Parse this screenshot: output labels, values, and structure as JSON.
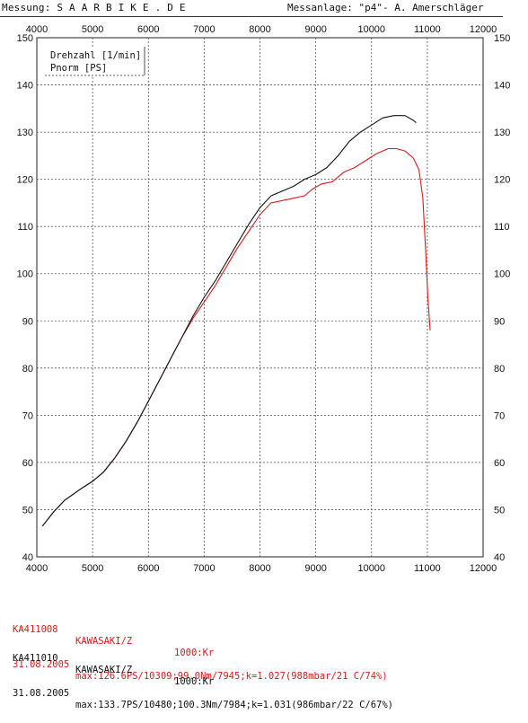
{
  "header": {
    "left": "Messung: S A A R B I K E . D E",
    "right": "Messanlage: \"p4\"- A. Amerschläger"
  },
  "chart_data": {
    "type": "line",
    "title": "",
    "legend_box": [
      "Drehzahl [1/min]",
      "Pnorm [PS]"
    ],
    "x_axis": {
      "label": "Drehzahl [1/min]",
      "range": [
        4000,
        12000
      ],
      "ticks": [
        4000,
        5000,
        6000,
        7000,
        8000,
        9000,
        10000,
        11000,
        12000
      ],
      "tick_labels": [
        "4000",
        "5000",
        "6000",
        "7000",
        "8000",
        "9000",
        "10000",
        "11000",
        "12000"
      ]
    },
    "y_axis": {
      "label": "Pnorm [PS]",
      "range": [
        40,
        150
      ],
      "ticks": [
        40,
        50,
        60,
        70,
        80,
        90,
        100,
        110,
        120,
        130,
        140,
        150
      ],
      "tick_labels": [
        "40",
        "50",
        "60",
        "70",
        "80",
        "90",
        "100",
        "110",
        "120",
        "130",
        "140",
        "150"
      ]
    },
    "grid": true,
    "series": [
      {
        "id": "KA411008",
        "color": "#d81b1b",
        "points": [
          [
            4100,
            46.5
          ],
          [
            4300,
            49.5
          ],
          [
            4500,
            52
          ],
          [
            4800,
            54.5
          ],
          [
            5000,
            56
          ],
          [
            5200,
            58
          ],
          [
            5400,
            61
          ],
          [
            5600,
            64.5
          ],
          [
            5800,
            68.5
          ],
          [
            6000,
            73
          ],
          [
            6200,
            77.5
          ],
          [
            6400,
            82
          ],
          [
            6600,
            86.5
          ],
          [
            6800,
            90.5
          ],
          [
            7000,
            94
          ],
          [
            7200,
            97.5
          ],
          [
            7400,
            101.5
          ],
          [
            7600,
            105.5
          ],
          [
            7800,
            109
          ],
          [
            8000,
            112.5
          ],
          [
            8200,
            115
          ],
          [
            8400,
            115.5
          ],
          [
            8600,
            116
          ],
          [
            8800,
            116.5
          ],
          [
            8950,
            118
          ],
          [
            9100,
            119
          ],
          [
            9300,
            119.5
          ],
          [
            9500,
            121.5
          ],
          [
            9700,
            122.5
          ],
          [
            9900,
            124
          ],
          [
            10100,
            125.5
          ],
          [
            10300,
            126.5
          ],
          [
            10450,
            126.5
          ],
          [
            10600,
            126
          ],
          [
            10750,
            124.5
          ],
          [
            10850,
            122
          ],
          [
            10920,
            116
          ],
          [
            10970,
            105
          ],
          [
            11010,
            95
          ],
          [
            11050,
            88
          ]
        ]
      },
      {
        "id": "KA411010",
        "color": "#111111",
        "points": [
          [
            4100,
            46.5
          ],
          [
            4300,
            49.5
          ],
          [
            4500,
            52
          ],
          [
            4800,
            54.5
          ],
          [
            5000,
            56
          ],
          [
            5200,
            58
          ],
          [
            5400,
            61
          ],
          [
            5600,
            64.5
          ],
          [
            5800,
            68.5
          ],
          [
            6000,
            73
          ],
          [
            6200,
            77.5
          ],
          [
            6400,
            82
          ],
          [
            6600,
            86.5
          ],
          [
            6800,
            91
          ],
          [
            7000,
            95
          ],
          [
            7200,
            98.5
          ],
          [
            7400,
            102.5
          ],
          [
            7600,
            106.5
          ],
          [
            7800,
            110.5
          ],
          [
            8000,
            114
          ],
          [
            8200,
            116.5
          ],
          [
            8400,
            117.5
          ],
          [
            8600,
            118.5
          ],
          [
            8800,
            120
          ],
          [
            9000,
            121
          ],
          [
            9200,
            122.5
          ],
          [
            9400,
            125
          ],
          [
            9600,
            128
          ],
          [
            9800,
            130
          ],
          [
            10000,
            131.5
          ],
          [
            10200,
            133
          ],
          [
            10400,
            133.5
          ],
          [
            10600,
            133.5
          ],
          [
            10750,
            132.5
          ],
          [
            10800,
            132
          ]
        ]
      }
    ]
  },
  "runs": [
    {
      "id": "KA411008",
      "bike": "KAWASAKI/Z",
      "extra": "1000:Kr\u0004",
      "date": "31.08.2005",
      "details": "max:126.6PS/10309;99.0Nm/7945;k=1.027(988mbar/21 C/74%)",
      "color": "red"
    },
    {
      "id": "KA411010",
      "bike": "KAWASAKI/Z",
      "extra": "1000:Kr\u0004",
      "date": "31.08.2005",
      "details": "max:133.7PS/10480;100.3Nm/7984;k=1.031(986mbar/22 C/67%)",
      "color": "black"
    }
  ]
}
